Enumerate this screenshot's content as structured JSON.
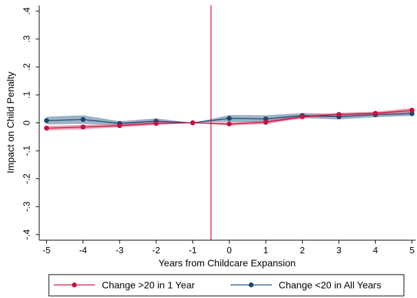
{
  "chart_data": {
    "type": "line",
    "title": "",
    "xlabel": "Years from Childcare Expansion",
    "ylabel": "Impact on Child Penalty",
    "x": [
      -5,
      -4,
      -3,
      -2,
      -1,
      0,
      1,
      2,
      3,
      4,
      5
    ],
    "x_ticks": [
      "-5",
      "-4",
      "-3",
      "-2",
      "-1",
      "0",
      "1",
      "2",
      "3",
      "4",
      "5"
    ],
    "y_ticks": [
      {
        "value": -0.4,
        "label": "-.4"
      },
      {
        "value": -0.3,
        "label": "-.3"
      },
      {
        "value": -0.2,
        "label": "-.2"
      },
      {
        "value": -0.1,
        "label": "-.1"
      },
      {
        "value": 0,
        "label": "0"
      },
      {
        "value": 0.1,
        "label": ".1"
      },
      {
        "value": 0.2,
        "label": ".2"
      },
      {
        "value": 0.3,
        "label": ".3"
      },
      {
        "value": 0.4,
        "label": ".4"
      }
    ],
    "xlim": [
      -5.2,
      5.1
    ],
    "ylim": [
      -0.42,
      0.42
    ],
    "vline": -0.5,
    "grid": false,
    "legend_position": "bottom",
    "series": [
      {
        "name": "Change >20 in 1 Year",
        "color": "#c8103e",
        "band_color": "#e0597a",
        "values": [
          -0.019,
          -0.015,
          -0.01,
          -0.002,
          0.0,
          -0.004,
          0.002,
          0.022,
          0.03,
          0.034,
          0.045
        ],
        "lower": [
          -0.027,
          -0.023,
          -0.016,
          -0.008,
          0.0,
          -0.01,
          -0.004,
          0.016,
          0.024,
          0.028,
          0.037
        ],
        "upper": [
          -0.011,
          -0.007,
          -0.004,
          0.004,
          0.0,
          0.002,
          0.008,
          0.028,
          0.036,
          0.04,
          0.053
        ]
      },
      {
        "name": "Change <20 in All Years",
        "color": "#1a476f",
        "band_color": "#5c7ea0",
        "values": [
          0.008,
          0.012,
          -0.002,
          0.006,
          0.0,
          0.016,
          0.014,
          0.026,
          0.022,
          0.029,
          0.033
        ],
        "lower": [
          -0.006,
          -0.003,
          -0.01,
          -0.004,
          0.0,
          0.004,
          0.001,
          0.017,
          0.012,
          0.02,
          0.025
        ],
        "upper": [
          0.022,
          0.027,
          0.006,
          0.016,
          0.0,
          0.028,
          0.027,
          0.035,
          0.032,
          0.038,
          0.041
        ]
      }
    ]
  }
}
